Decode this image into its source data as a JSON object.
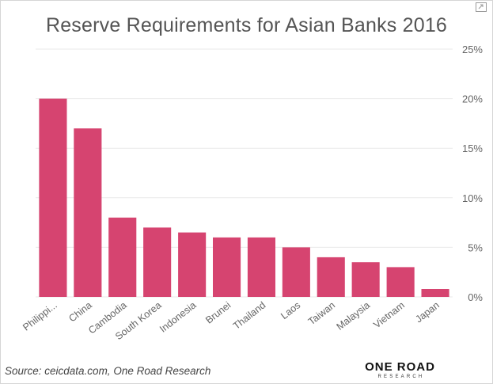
{
  "chart_data": {
    "type": "bar",
    "title": "Reserve Requirements for Asian Banks 2016",
    "categories": [
      "Philippi...",
      "China",
      "Cambodia",
      "South Korea",
      "Indonesia",
      "Brunei",
      "Thailand",
      "Laos",
      "Taiwan",
      "Malaysia",
      "Vietnam",
      "Japan"
    ],
    "values": [
      20,
      17,
      8,
      7,
      6.5,
      6,
      6,
      5,
      4,
      3.5,
      3,
      0.8
    ],
    "ylim": [
      0,
      25
    ],
    "yticks": [
      0,
      5,
      10,
      15,
      20,
      25
    ],
    "ytick_labels": [
      "0%",
      "5%",
      "10%",
      "15%",
      "20%",
      "25%"
    ],
    "y_axis_side": "right",
    "grid": true,
    "bar_color": "#D64470",
    "xlabel": "",
    "ylabel": ""
  },
  "footer": {
    "source_text": "Source:  ceicdata.com, One Road Research",
    "logo_main": "ONE ROAD",
    "logo_sub": "RESEARCH"
  },
  "icons": {
    "focus_mode": "focus-mode-icon"
  }
}
